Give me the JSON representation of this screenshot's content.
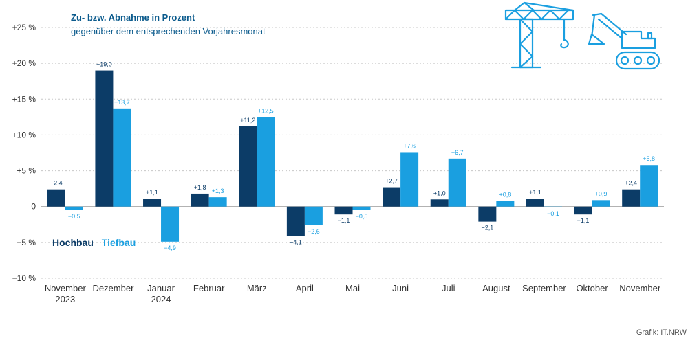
{
  "title": "Zu- bzw. Abnahme in Prozent",
  "subtitle": "gegenüber dem entsprechenden Vorjahresmonat",
  "source": "Grafik: IT.NRW",
  "legend": {
    "hochbau": "Hochbau",
    "tiefbau": "Tiefbau"
  },
  "colors": {
    "hochbau": "#0c3c67",
    "tiefbau": "#1a9fe0",
    "grid": "#c8c8c8",
    "text": "#333333"
  },
  "icons": [
    "crane-icon",
    "excavator-icon"
  ],
  "chart_data": {
    "type": "bar",
    "categories": [
      [
        "November",
        "2023"
      ],
      [
        "Dezember"
      ],
      [
        "Januar",
        "2024"
      ],
      [
        "Februar"
      ],
      [
        "März"
      ],
      [
        "April"
      ],
      [
        "Mai"
      ],
      [
        "Juni"
      ],
      [
        "Juli"
      ],
      [
        "August"
      ],
      [
        "September"
      ],
      [
        "Oktober"
      ],
      [
        "November"
      ]
    ],
    "series": [
      {
        "name": "Hochbau",
        "values": [
          2.4,
          19.0,
          1.1,
          1.8,
          11.2,
          -4.1,
          -1.1,
          2.7,
          1.0,
          -2.1,
          1.1,
          -1.1,
          2.4
        ],
        "labels": [
          "+2,4",
          "+19,0",
          "+1,1",
          "+1,8",
          "+11,2",
          "−4,1",
          "−1,1",
          "+2,7",
          "+1,0",
          "−2,1",
          "+1,1",
          "−1,1",
          "+2,4"
        ]
      },
      {
        "name": "Tiefbau",
        "values": [
          -0.5,
          13.7,
          -4.9,
          1.3,
          12.5,
          -2.6,
          -0.5,
          7.6,
          6.7,
          0.8,
          -0.1,
          0.9,
          5.8
        ],
        "labels": [
          "−0,5",
          "+13,7",
          "−4,9",
          "+1,3",
          "+12,5",
          "−2,6",
          "−0,5",
          "+7,6",
          "+6,7",
          "+0,8",
          "−0,1",
          "+0,9",
          "+5,8"
        ]
      }
    ],
    "yticks": [
      25,
      20,
      15,
      10,
      5,
      0,
      -5,
      -10
    ],
    "yticklabels": [
      "+25 %",
      "+20 %",
      "+15 %",
      "+10 %",
      "+5 %",
      "0",
      "−5 %",
      "−10 %"
    ],
    "ylim": [
      -10,
      25
    ],
    "grid": true,
    "legend_position": "left, below zero line"
  }
}
